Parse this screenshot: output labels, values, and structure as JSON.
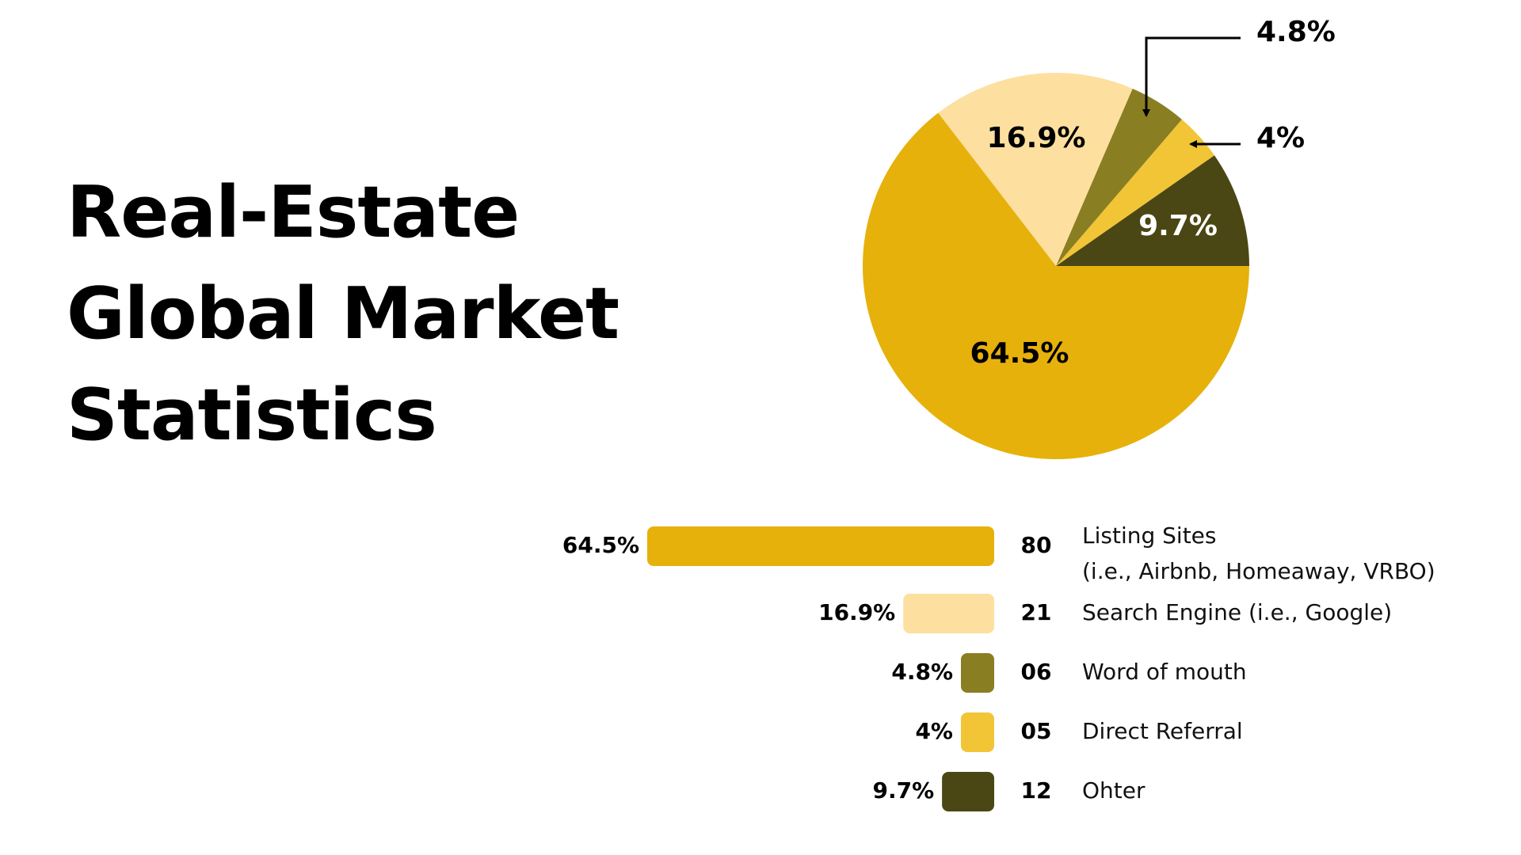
{
  "title_lines": [
    "Real-Estate",
    "Global Market",
    "Statistics"
  ],
  "colors": {
    "listing": "#E6B10B",
    "search": "#FDDF9F",
    "word": "#8A7E22",
    "direct": "#F1C535",
    "other": "#4B4714",
    "text": "#000000",
    "arrow": "#000000"
  },
  "chart_data": {
    "type": "pie",
    "series": [
      {
        "name": "Listing Sites",
        "label_lines": [
          "Listing Sites",
          "(i.e., Airbnb, Homeaway, VRBO)"
        ],
        "value": 64.5,
        "value_label": "64.5%",
        "count": "80",
        "color": "#E6B10B",
        "label_color": "#000000"
      },
      {
        "name": "Search Engine (i.e., Google)",
        "label_lines": [
          "Search Engine (i.e., Google)"
        ],
        "value": 16.9,
        "value_label": "16.9%",
        "count": "21",
        "color": "#FDDF9F",
        "label_color": "#000000"
      },
      {
        "name": "Word of mouth",
        "label_lines": [
          "Word of mouth"
        ],
        "value": 4.8,
        "value_label": "4.8%",
        "count": "06",
        "color": "#8A7E22",
        "label_color": "#000000"
      },
      {
        "name": "Direct Referral",
        "label_lines": [
          "Direct Referral"
        ],
        "value": 4,
        "value_label": "4%",
        "count": "05",
        "color": "#F1C535",
        "label_color": "#000000"
      },
      {
        "name": "Ohter",
        "label_lines": [
          "Ohter"
        ],
        "value": 9.7,
        "value_label": "9.7%",
        "count": "12",
        "color": "#4B4714",
        "label_color": "#ffffff"
      }
    ]
  }
}
